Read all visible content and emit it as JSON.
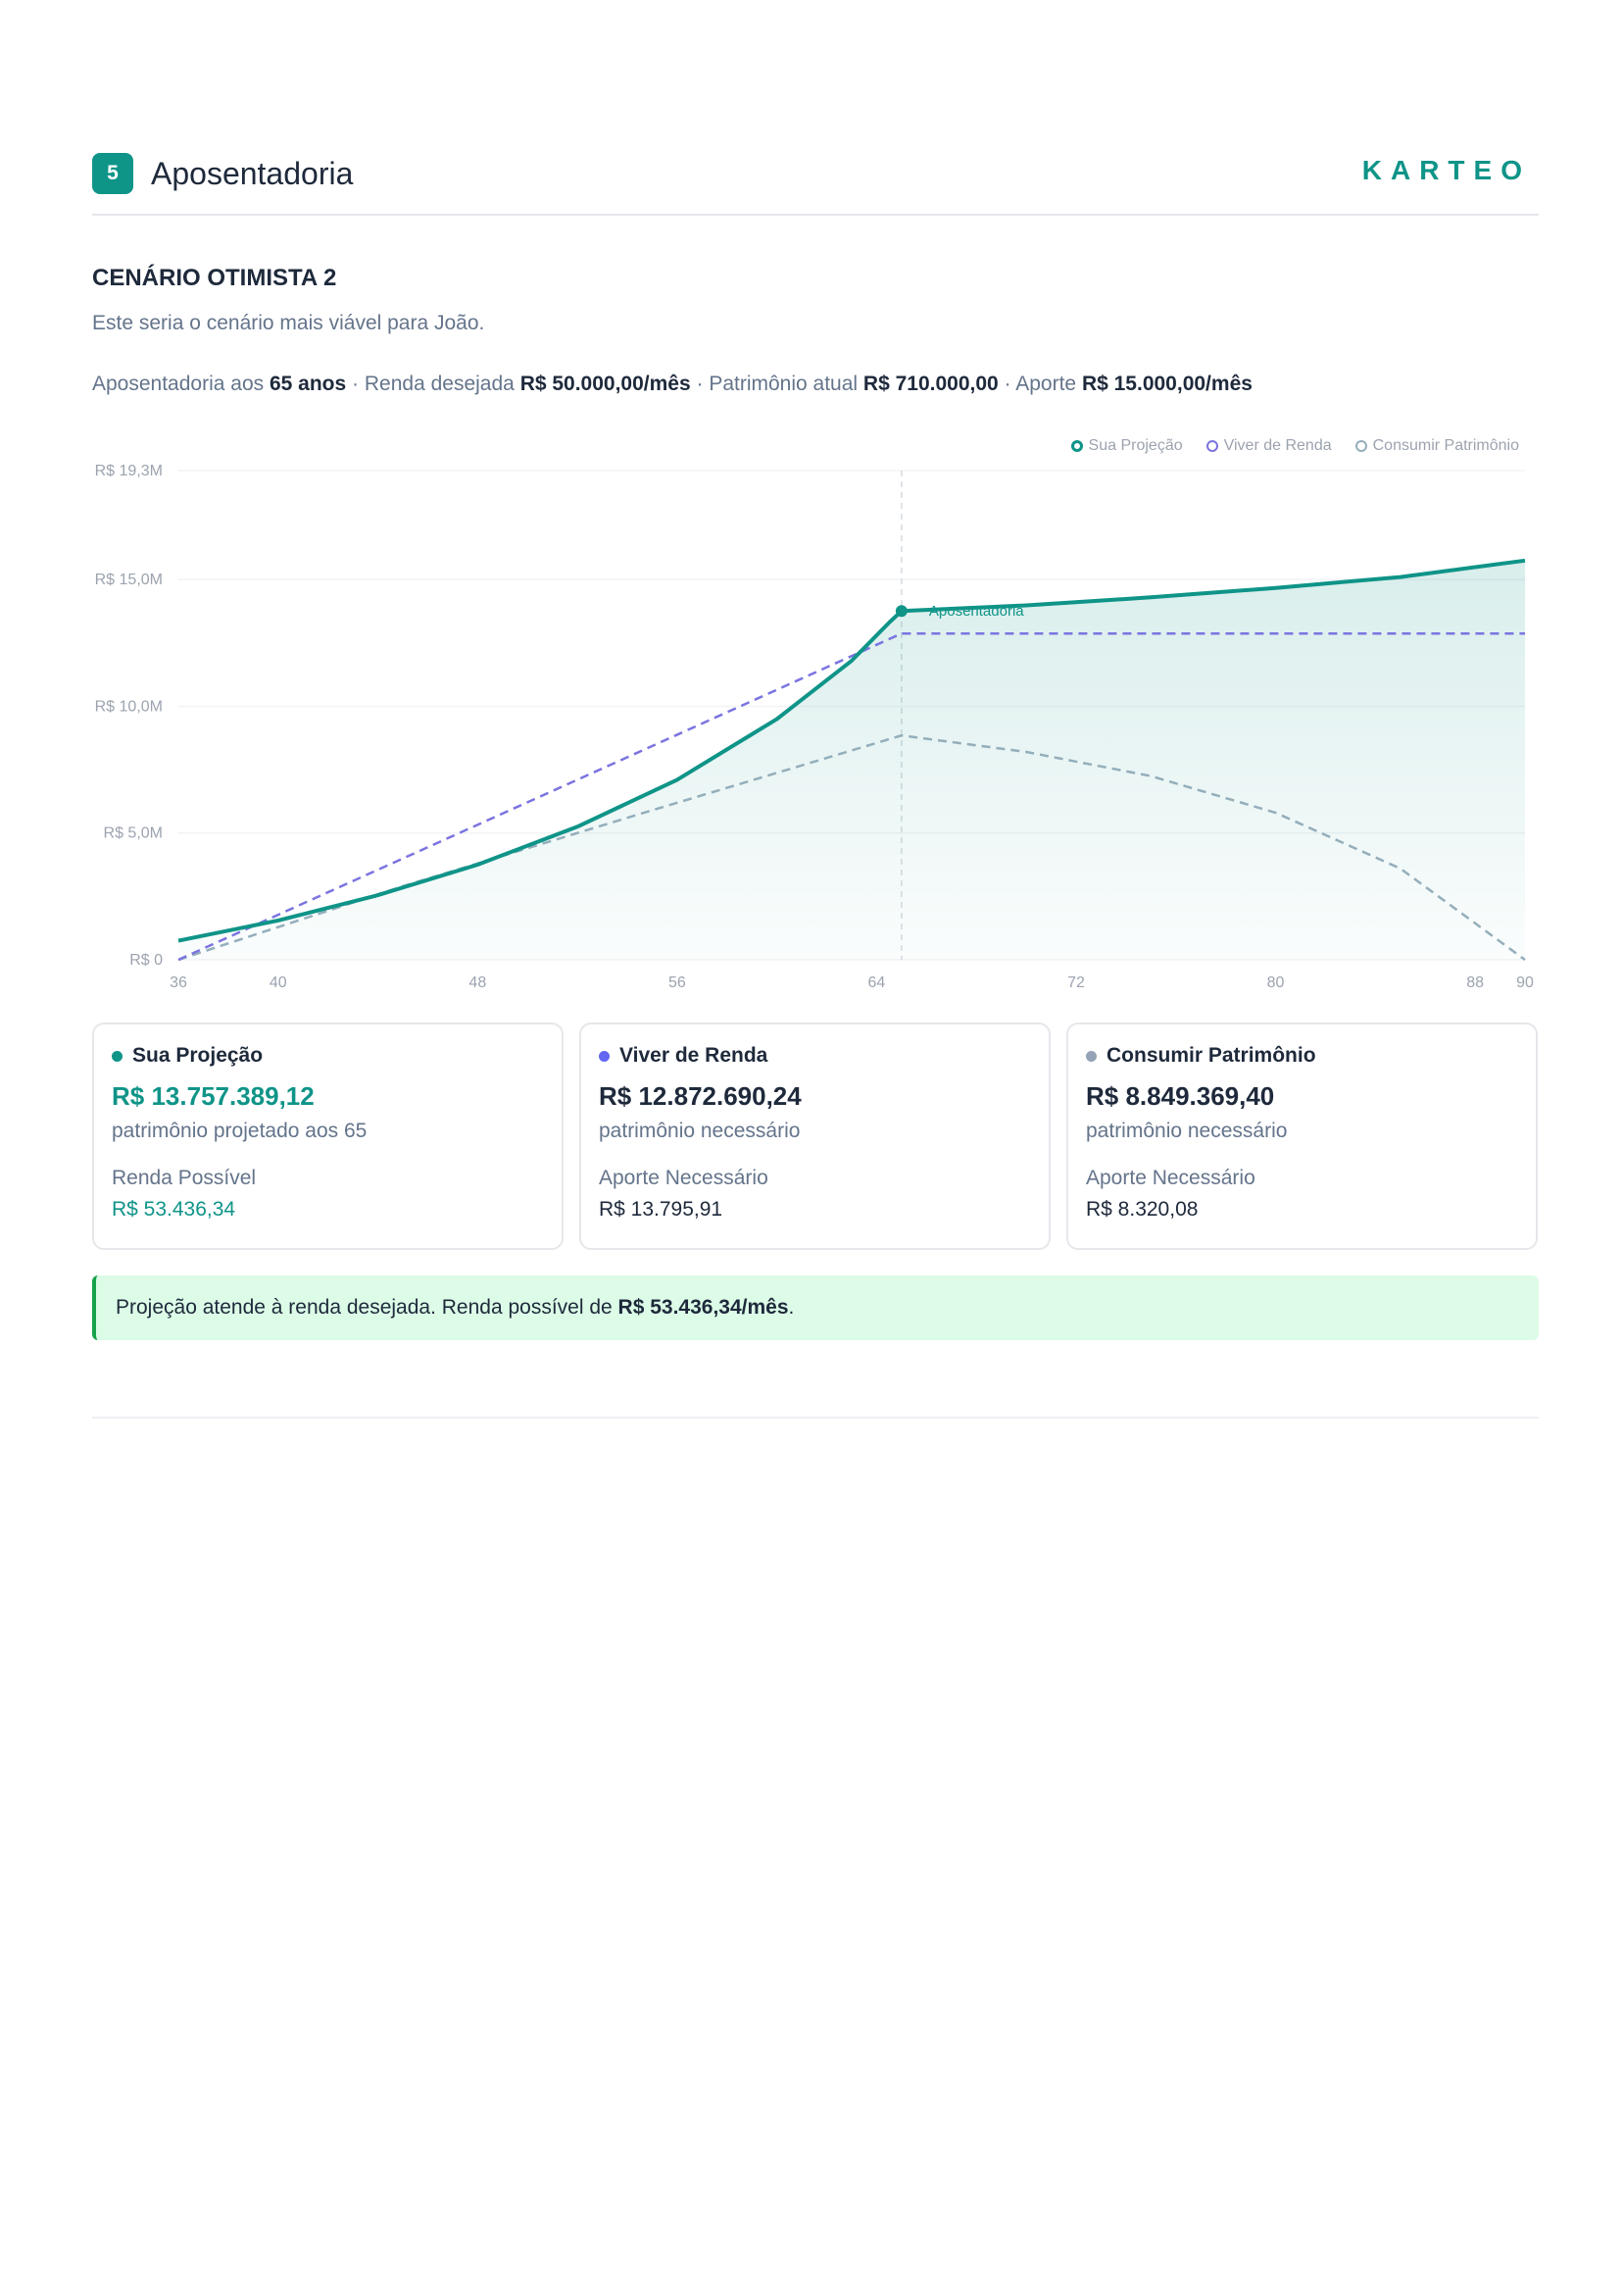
{
  "header": {
    "section_number": "5",
    "section_title": "Aposentadoria",
    "brand": "KARTEO"
  },
  "scenario": {
    "title": "CENÁRIO OTIMISTA 2",
    "description": "Este seria o cenário mais viável para João.",
    "summary": {
      "retire_label": "Aposentadoria aos",
      "retire_value": "65 anos",
      "income_label": "· Renda desejada",
      "income_value": "R$ 50.000,00/mês",
      "assets_label": "· Patrimônio atual",
      "assets_value": "R$ 710.000,00",
      "contrib_label": "· Aporte",
      "contrib_value": "R$ 15.000,00/mês"
    }
  },
  "chart_data": {
    "type": "line",
    "title": "",
    "xlabel": "",
    "ylabel": "",
    "xlim": [
      36,
      90
    ],
    "ylim": [
      0,
      19.3
    ],
    "y_ticks": [
      0,
      5,
      10,
      15,
      19.3
    ],
    "y_tick_labels": [
      "R$ 0",
      "R$ 5,0M",
      "R$ 10,0M",
      "R$ 15,0M",
      "R$ 19,3M"
    ],
    "x_ticks": [
      36,
      40,
      48,
      56,
      64,
      72,
      80,
      88,
      90
    ],
    "x_tick_labels": [
      "36",
      "40",
      "48",
      "56",
      "64",
      "72",
      "80",
      "88",
      "90"
    ],
    "grid": true,
    "legend_position": "top-right",
    "retirement_age": 65,
    "retirement_label": "Aposentadoria",
    "series": [
      {
        "name": "Sua Projeção",
        "color": "#0f9488",
        "style": "solid-area",
        "x": [
          36,
          40,
          44,
          48,
          52,
          56,
          60,
          63,
          64.5,
          65,
          70,
          75,
          80,
          85,
          90
        ],
        "y": [
          0.75,
          1.55,
          2.55,
          3.75,
          5.25,
          7.1,
          9.5,
          11.8,
          13.3,
          13.76,
          13.98,
          14.3,
          14.67,
          15.1,
          15.75
        ]
      },
      {
        "name": "Viver de Renda",
        "color": "#7b74e0",
        "style": "dashed",
        "x": [
          36,
          65,
          90
        ],
        "y": [
          0,
          12.87,
          12.87
        ]
      },
      {
        "name": "Consumir Patrimônio",
        "color": "#94aebb",
        "style": "dashed",
        "x": [
          36,
          45,
          55,
          65,
          70,
          75,
          80,
          85,
          90
        ],
        "y": [
          0,
          2.9,
          5.9,
          8.85,
          8.2,
          7.25,
          5.8,
          3.6,
          0
        ]
      }
    ]
  },
  "cards": [
    {
      "title": "Sua Projeção",
      "dot_color": "#0f9488",
      "value": "R$ 13.757.389,12",
      "value_accent": true,
      "sub": "patrimônio projetado aos 65",
      "label": "Renda Possível",
      "amount": "R$ 53.436,34",
      "amount_accent": true
    },
    {
      "title": "Viver de Renda",
      "dot_color": "#6366f1",
      "value": "R$ 12.872.690,24",
      "value_accent": false,
      "sub": "patrimônio necessário",
      "label": "Aporte Necessário",
      "amount": "R$ 13.795,91",
      "amount_accent": false
    },
    {
      "title": "Consumir Patrimônio",
      "dot_color": "#94a3b8",
      "value": "R$ 8.849.369,40",
      "value_accent": false,
      "sub": "patrimônio necessário",
      "label": "Aporte Necessário",
      "amount": "R$ 8.320,08",
      "amount_accent": false
    }
  ],
  "alert": {
    "text_before": "Projeção atende à renda desejada. Renda possível de",
    "highlight": "R$ 53.436,34/mês",
    "text_after": "."
  }
}
